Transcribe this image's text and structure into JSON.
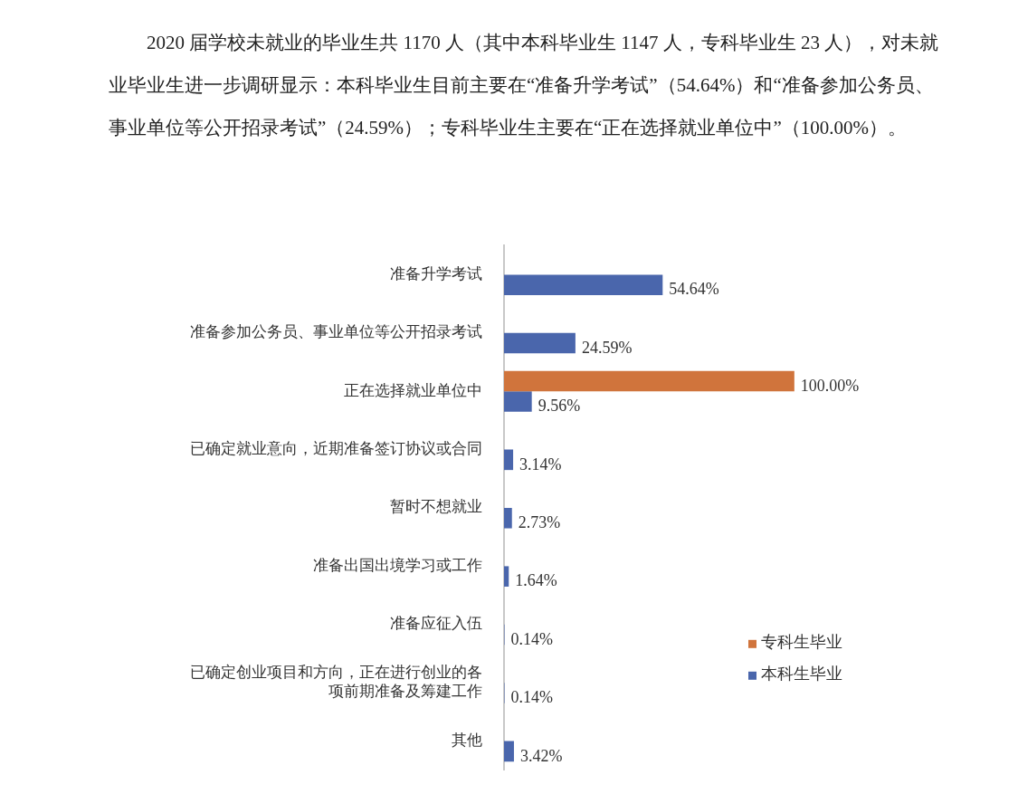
{
  "chart_data": {
    "type": "bar",
    "orientation": "horizontal",
    "annotations": [
      "2020 届学校未就业的毕业生共 1170 人（其中本科毕业生 1147 人，专科毕业生 23 人），对未就业毕业生进一步调研显示：本科毕业生目前主要在“准备升学考试”（54.64%）和“准备参加公务员、事业单位等公开招录考试”（24.59%）；专科毕业生主要在“正在选择就业单位中”（100.00%）。"
    ],
    "categories": [
      "准备升学考试",
      "准备参加公务员、事业单位等公开招录考试",
      "正在选择就业单位中",
      "已确定就业意向，近期准备签订协议或合同",
      "暂时不想就业",
      "准备出国出境学习或工作",
      "准备应征入伍",
      "已确定创业项目和方向，正在进行创业的各项前期准备及筹建工作",
      "其他"
    ],
    "series": [
      {
        "name": "专科生毕业",
        "color": "#d0743c",
        "values": [
          null,
          null,
          100,
          null,
          null,
          null,
          null,
          null,
          null
        ],
        "value_labels": [
          null,
          null,
          "100.00%",
          null,
          null,
          null,
          null,
          null,
          null
        ]
      },
      {
        "name": "本科生毕业",
        "color": "#4a66ac",
        "values": [
          54.64,
          24.59,
          9.56,
          3.14,
          2.73,
          1.64,
          0.14,
          0.14,
          3.42
        ],
        "value_labels": [
          "54.64%",
          "24.59%",
          "9.56%",
          "3.14%",
          "2.73%",
          "1.64%",
          "0.14%",
          "0.14%",
          "3.42%"
        ]
      }
    ],
    "tick_labels": "y",
    "grid": false,
    "legend": "bottom right"
  }
}
